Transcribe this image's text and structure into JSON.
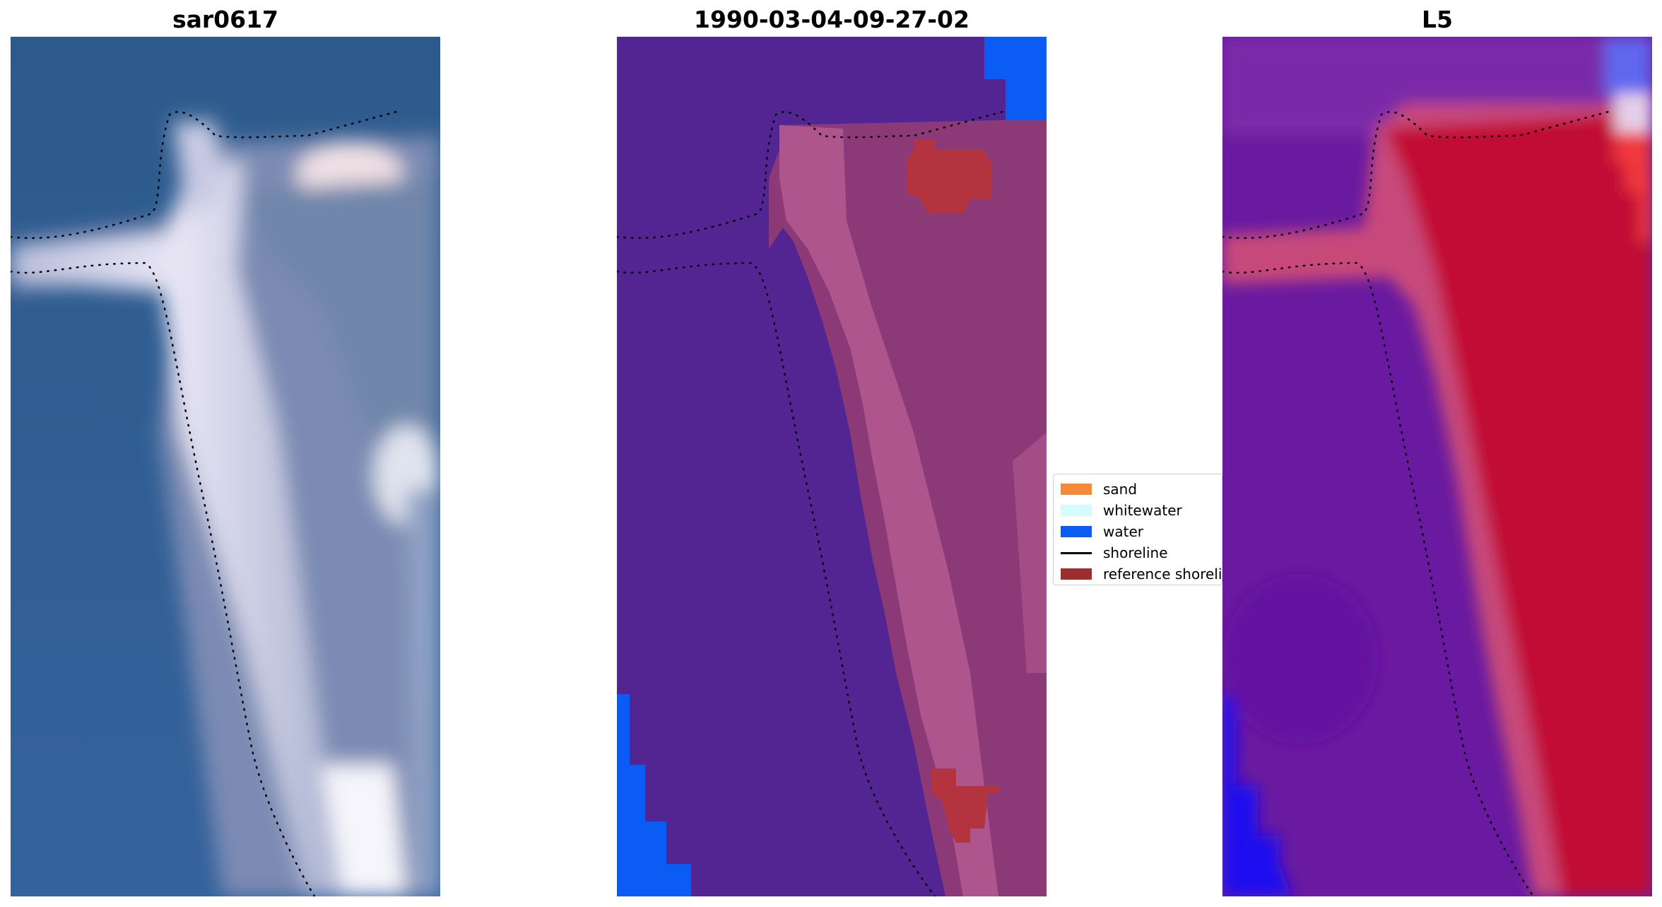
{
  "panels": [
    {
      "title": "sar0617"
    },
    {
      "title": "1990-03-04-09-27-02"
    },
    {
      "title": "L5"
    }
  ],
  "legend": {
    "items": [
      {
        "label": "sand",
        "color": "#f5893a",
        "kind": "patch"
      },
      {
        "label": "whitewater",
        "color": "#d6fbfb",
        "kind": "patch"
      },
      {
        "label": "water",
        "color": "#0a5cf5",
        "kind": "patch"
      },
      {
        "label": "shoreline",
        "color": "#000000",
        "kind": "line"
      },
      {
        "label": "reference shoreline",
        "color": "#9b2f2f",
        "kind": "patch"
      }
    ]
  },
  "colors": {
    "rgb_water": "#2f5a94",
    "rgb_sand": "#d8dcef",
    "class_background": "#522593",
    "class_land": "#8b3a77",
    "class_land_light": "#b45a92",
    "class_reference": "#b3333f",
    "class_water": "#0a5cf5",
    "prob_water": "#6a1aa0",
    "prob_land": "#c10a35",
    "prob_deep_water": "#1a10f0",
    "shoreline": "#000000"
  }
}
